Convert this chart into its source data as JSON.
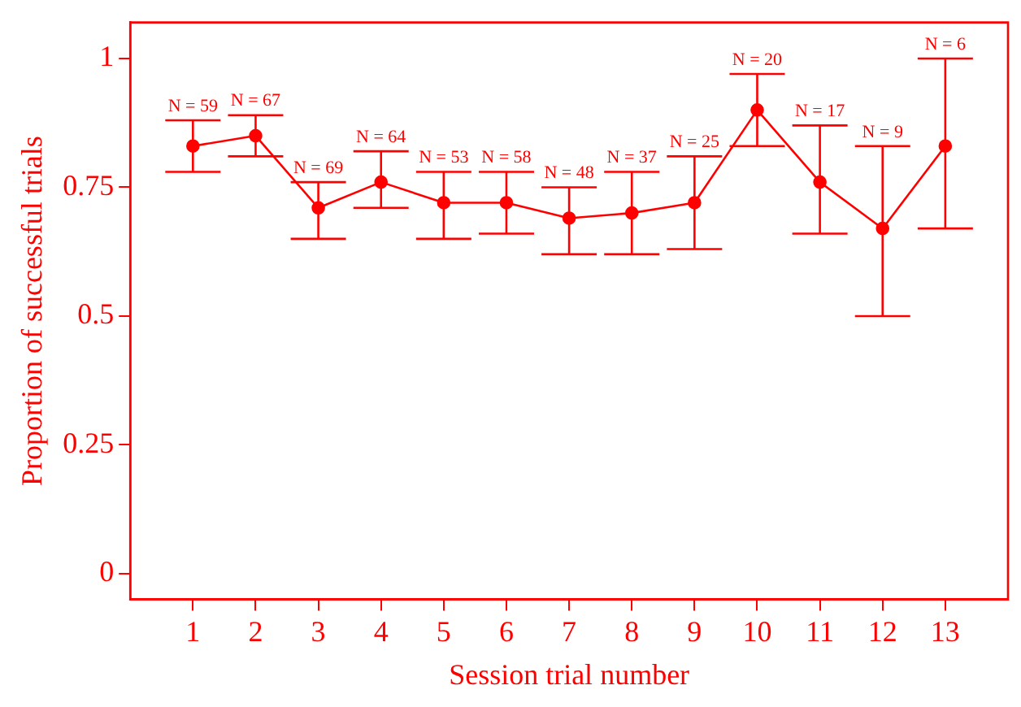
{
  "chart_data": {
    "type": "line",
    "xlabel": "Session trial number",
    "ylabel": "Proportion of successful trials",
    "x": [
      1,
      2,
      3,
      4,
      5,
      6,
      7,
      8,
      9,
      10,
      11,
      12,
      13
    ],
    "series": [
      {
        "color": "#ff0000",
        "values": [
          0.83,
          0.85,
          0.71,
          0.76,
          0.72,
          0.72,
          0.69,
          0.7,
          0.72,
          0.9,
          0.76,
          0.67,
          0.83
        ],
        "errors": [
          [
            0.78,
            0.88
          ],
          [
            0.81,
            0.89
          ],
          [
            0.65,
            0.76
          ],
          [
            0.71,
            0.82
          ],
          [
            0.65,
            0.78
          ],
          [
            0.66,
            0.78
          ],
          [
            0.62,
            0.75
          ],
          [
            0.62,
            0.78
          ],
          [
            0.63,
            0.81
          ],
          [
            0.83,
            0.97
          ],
          [
            0.66,
            0.87
          ],
          [
            0.5,
            0.83
          ],
          [
            0.67,
            1.0
          ]
        ]
      }
    ],
    "xlim": [
      0,
      14
    ],
    "xticks": [
      1,
      2,
      3,
      4,
      5,
      6,
      7,
      8,
      9,
      10,
      11,
      12,
      13
    ],
    "ylim": [
      -0.05,
      1.07
    ],
    "yticks": [
      0,
      0.25,
      0.5,
      0.75,
      1
    ],
    "annotations": [
      {
        "text": "N = 59",
        "x": 1,
        "y": 0.88
      },
      {
        "text": "N = 67",
        "x": 2,
        "y": 0.89
      },
      {
        "text": "N = 69",
        "x": 3,
        "y": 0.76
      },
      {
        "text": "N = 64",
        "x": 4,
        "y": 0.82
      },
      {
        "text": "N = 53",
        "x": 5,
        "y": 0.78
      },
      {
        "text": "N = 58",
        "x": 6,
        "y": 0.78
      },
      {
        "text": "N = 48",
        "x": 7,
        "y": 0.75
      },
      {
        "text": "N = 37",
        "x": 8,
        "y": 0.78
      },
      {
        "text": "N = 25",
        "x": 9,
        "y": 0.81
      },
      {
        "text": "N = 20",
        "x": 10,
        "y": 0.97
      },
      {
        "text": "N = 17",
        "x": 11,
        "y": 0.87
      },
      {
        "text": "N = 9",
        "x": 12,
        "y": 0.83
      },
      {
        "text": "N = 6",
        "x": 13,
        "y": 1.0
      }
    ],
    "grid": false,
    "legend": false,
    "marker": "circle",
    "line_style": "solid"
  }
}
